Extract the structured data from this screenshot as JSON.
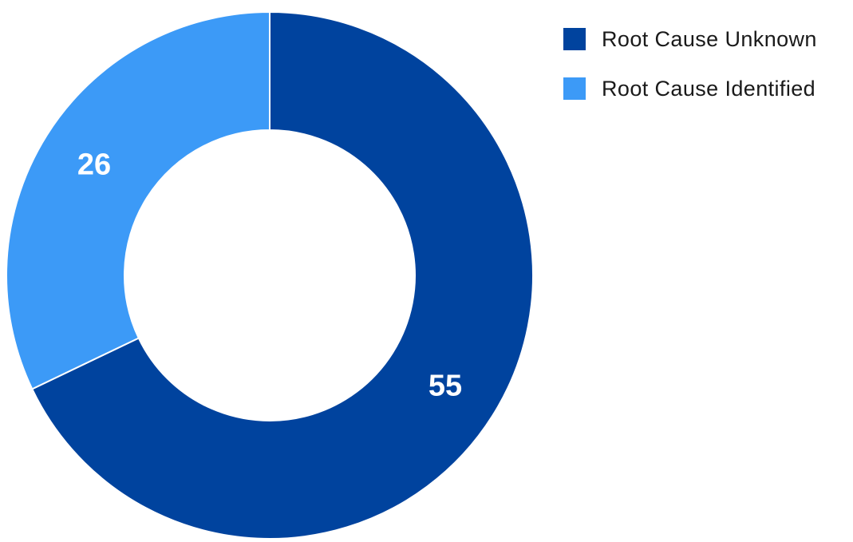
{
  "chart_data": {
    "type": "pie",
    "categories": [
      "Root Cause Unknown",
      "Root Cause Identified"
    ],
    "values": [
      55,
      26
    ],
    "colors": [
      "#00439E",
      "#3C9AF7"
    ],
    "data_labels": [
      "55",
      "26"
    ],
    "donut": true,
    "legend_position": "top-right"
  }
}
